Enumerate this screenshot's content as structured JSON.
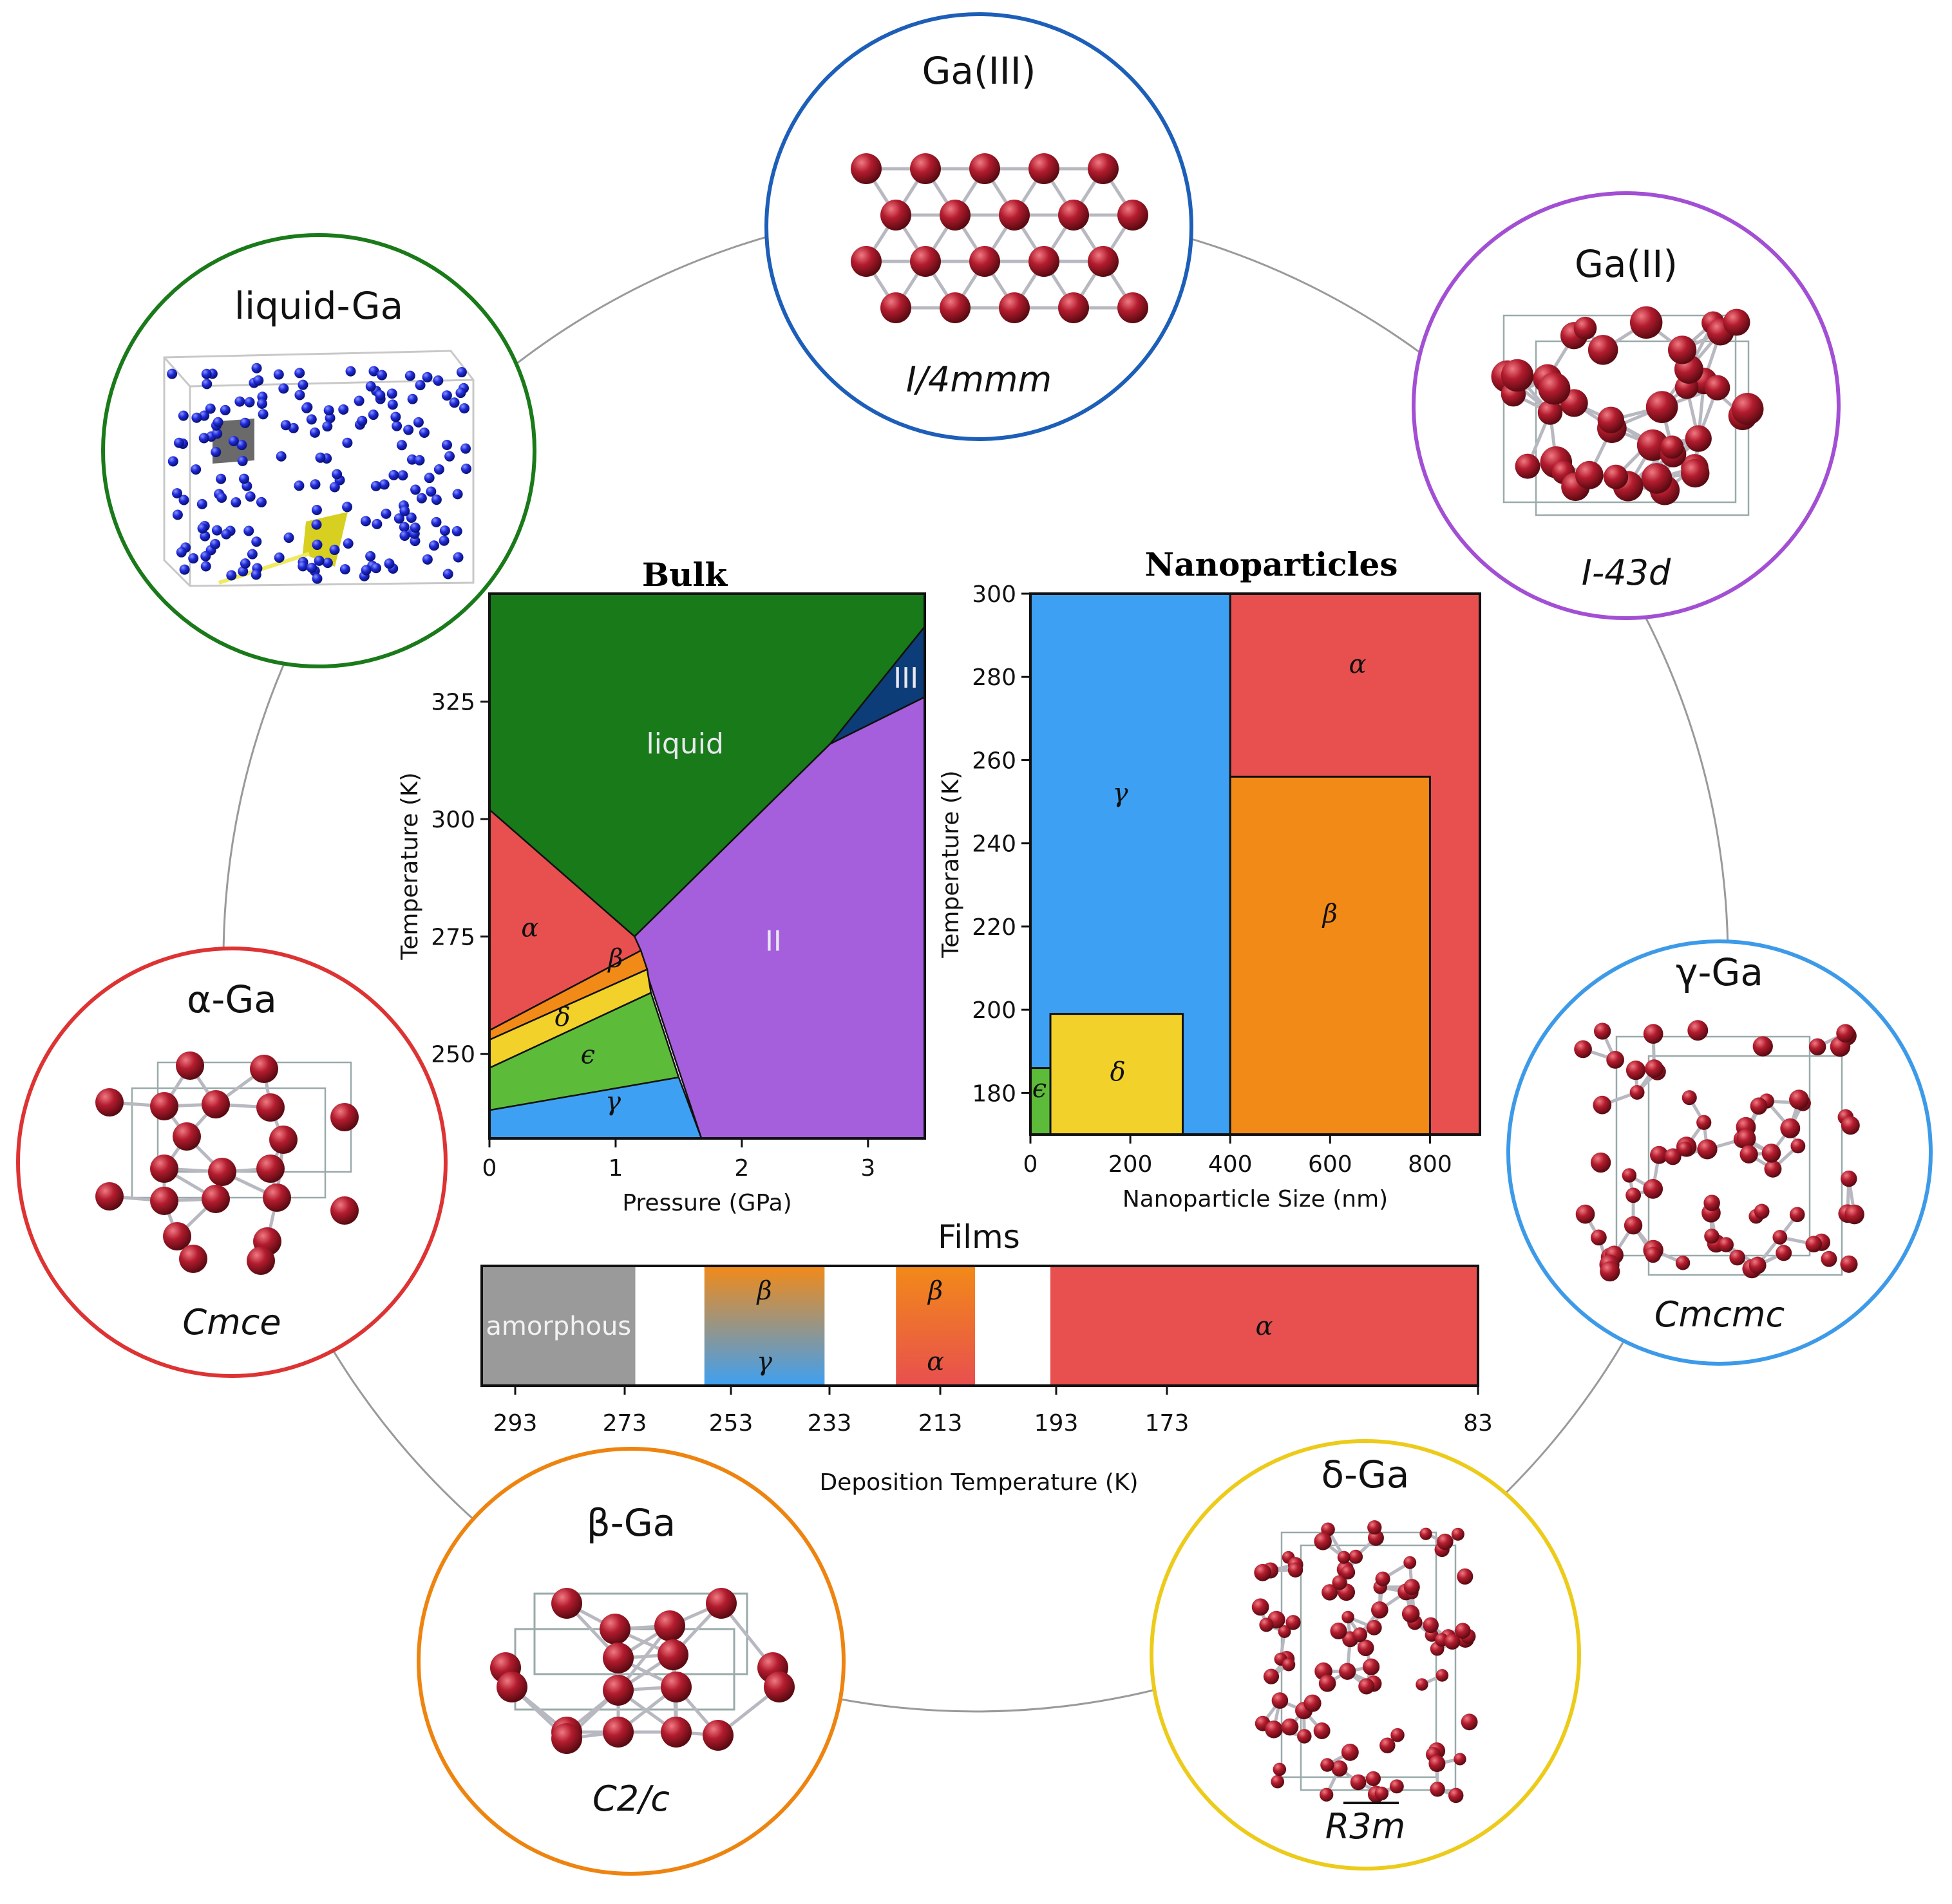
{
  "phases": {
    "ga3": {
      "name": "Ga(III)",
      "space_group": "I/4mmm"
    },
    "ga2": {
      "name": "Ga(II)",
      "space_group": "I-43d"
    },
    "liquid": {
      "name": "liquid-Ga"
    },
    "alpha": {
      "name": "α-Ga",
      "space_group": "Cmce"
    },
    "gamma": {
      "name": "γ-Ga",
      "space_group": "Cmcmc"
    },
    "beta": {
      "name": "β-Ga",
      "space_group": "C2/c"
    },
    "delta": {
      "name": "δ-Ga",
      "space_group": "R3m"
    }
  },
  "colors": {
    "liquid": "#187a18",
    "III": "#0d3d78",
    "II": "#a65fdc",
    "alpha": "#e84f4f",
    "beta": "#f28a18",
    "delta": "#f2d12a",
    "epsilon": "#5dbb3a",
    "gamma": "#3ea0f2",
    "amorphous": "#9a9a9a",
    "atom": "#a01a2a",
    "liquid_atom": "#1e2ad8",
    "ring_ga3": "#1d5fb8",
    "ring_ga2": "#a24fd4",
    "ring_liquid": "#1a7a1a",
    "ring_alpha": "#dd3333",
    "ring_gamma": "#3d9ae8",
    "ring_beta": "#ee8410",
    "ring_delta": "#eccb1a"
  },
  "chart_data": [
    {
      "type": "area",
      "title": "Bulk",
      "xlabel": "Pressure (GPa)",
      "ylabel": "Temperature (K)",
      "xlim": [
        0,
        3.45
      ],
      "ylim": [
        232,
        348
      ],
      "xticks": [
        0,
        1,
        2,
        3
      ],
      "yticks": [
        250,
        275,
        300,
        325
      ],
      "regions": [
        {
          "label": "liquid",
          "key": "liquid",
          "points": [
            [
              0,
              348
            ],
            [
              3.45,
              348
            ],
            [
              3.45,
              341
            ],
            [
              2.7,
              316
            ],
            [
              1.15,
              275
            ],
            [
              0,
              302
            ]
          ],
          "label_at": [
            1.55,
            314
          ]
        },
        {
          "label": "III",
          "key": "III",
          "points": [
            [
              2.7,
              316
            ],
            [
              3.45,
              341
            ],
            [
              3.45,
              326
            ]
          ],
          "label_at": [
            3.3,
            328
          ]
        },
        {
          "label": "II",
          "key": "II",
          "points": [
            [
              1.15,
              275
            ],
            [
              2.7,
              316
            ],
            [
              3.45,
              326
            ],
            [
              3.45,
              232
            ],
            [
              1.68,
              232
            ]
          ],
          "label_at": [
            2.25,
            272
          ]
        },
        {
          "label": "α",
          "key": "alpha",
          "points": [
            [
              0,
              302
            ],
            [
              1.15,
              275
            ],
            [
              1.2,
              272
            ],
            [
              0,
              255
            ]
          ],
          "label_at": [
            0.32,
            275
          ]
        },
        {
          "label": "β",
          "key": "beta",
          "points": [
            [
              0,
              255
            ],
            [
              1.2,
              272
            ],
            [
              1.25,
              268
            ],
            [
              0,
              253
            ]
          ],
          "label_at": [
            1.0,
            268.5
          ]
        },
        {
          "label": "δ",
          "key": "delta",
          "points": [
            [
              0,
              253
            ],
            [
              1.25,
              268
            ],
            [
              1.28,
              263
            ],
            [
              0,
              247
            ]
          ],
          "label_at": [
            0.58,
            256
          ]
        },
        {
          "label": "ϵ",
          "key": "epsilon",
          "points": [
            [
              0,
              247
            ],
            [
              1.28,
              263
            ],
            [
              1.5,
              245
            ],
            [
              0,
              238
            ]
          ],
          "label_at": [
            0.78,
            248
          ]
        },
        {
          "label": "γ",
          "key": "gamma",
          "points": [
            [
              0,
              238
            ],
            [
              1.5,
              245
            ],
            [
              1.68,
              232
            ],
            [
              0,
              232
            ]
          ],
          "label_at": [
            0.98,
            238
          ]
        }
      ]
    },
    {
      "type": "area",
      "title": "Nanoparticles",
      "xlabel": "Nanoparticle Size (nm)",
      "ylabel": "Temperature (K)",
      "xlim": [
        0,
        900
      ],
      "ylim": [
        170,
        300
      ],
      "xticks": [
        0,
        200,
        400,
        600,
        800
      ],
      "yticks": [
        180,
        200,
        220,
        240,
        260,
        280,
        300
      ],
      "regions": [
        {
          "label": "γ",
          "key": "gamma",
          "x0": 0,
          "x1": 400,
          "y0": 170,
          "y1": 300,
          "label_at": [
            180,
            250
          ]
        },
        {
          "label": "α",
          "key": "alpha",
          "x0": 400,
          "x1": 900,
          "y0": 170,
          "y1": 300,
          "label_at": [
            655,
            281
          ]
        },
        {
          "label": "β",
          "key": "beta",
          "x0": 400,
          "x1": 800,
          "y0": 170,
          "y1": 256,
          "label_at": [
            600,
            221
          ]
        },
        {
          "label": "δ",
          "key": "delta",
          "x0": 40,
          "x1": 305,
          "y0": 170,
          "y1": 199,
          "label_at": [
            175,
            183
          ]
        },
        {
          "label": "ϵ",
          "key": "epsilon",
          "x0": 0,
          "x1": 40,
          "y0": 170,
          "y1": 186,
          "label_at": [
            18,
            179
          ]
        }
      ]
    },
    {
      "type": "bar",
      "title": "Films",
      "xlabel": "Deposition Temperature (K)",
      "xticks": [
        293,
        273,
        253,
        233,
        213,
        193,
        173,
        83
      ],
      "segments": [
        {
          "from": 303,
          "to": 271,
          "top": "amorphous",
          "bottom": "",
          "color": "amorphous",
          "gradient": false
        },
        {
          "from": 258,
          "to": 234,
          "top": "β",
          "bottom": "γ",
          "color": "beta",
          "color2": "gamma",
          "gradient": true
        },
        {
          "from": 221,
          "to": 207,
          "top": "β",
          "bottom": "α",
          "color": "beta",
          "color2": "alpha",
          "gradient": true
        },
        {
          "from": 194,
          "to": 83,
          "top": "α",
          "bottom": "",
          "color": "alpha",
          "gradient": false
        }
      ]
    }
  ]
}
